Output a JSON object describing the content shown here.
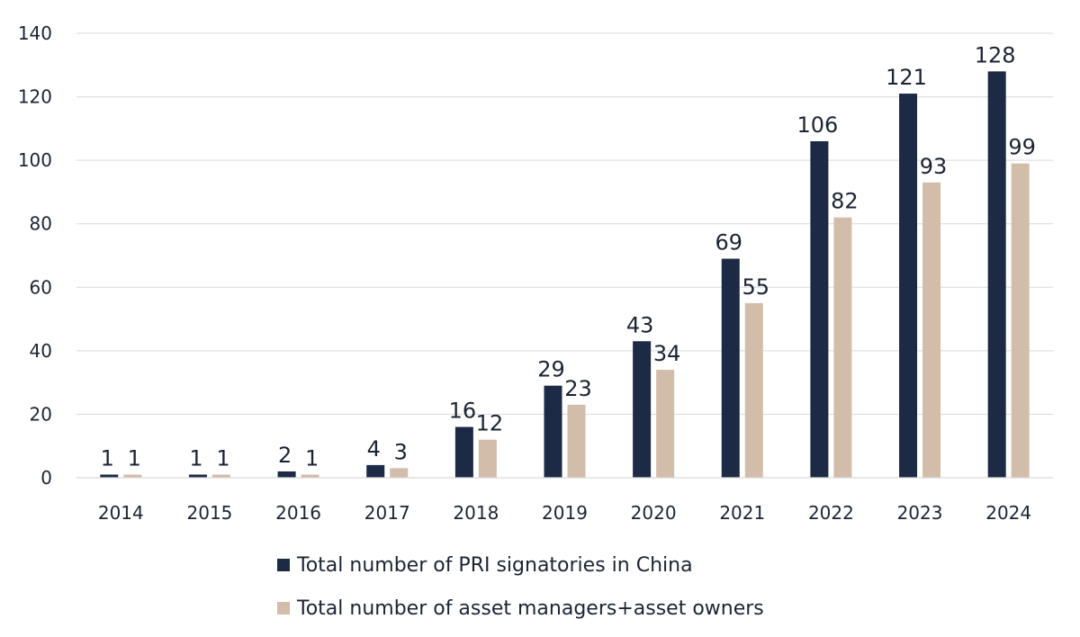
{
  "chart_data": {
    "type": "bar",
    "title": "",
    "xlabel": "",
    "ylabel": "",
    "ylim": [
      0,
      140
    ],
    "yticks": [
      0,
      20,
      40,
      60,
      80,
      100,
      120,
      140
    ],
    "grid": true,
    "legend_position": "bottom-center",
    "categories": [
      "2014",
      "2015",
      "2016",
      "2017",
      "2018",
      "2019",
      "2020",
      "2021",
      "2022",
      "2023",
      "2024"
    ],
    "series": [
      {
        "name": "Total number of PRI signatories in China",
        "color": "#1c2a45",
        "values": [
          1,
          1,
          2,
          4,
          16,
          29,
          43,
          69,
          106,
          121,
          128
        ]
      },
      {
        "name": "Total number of asset managers+asset owners",
        "color": "#d2bcaa",
        "values": [
          1,
          1,
          1,
          3,
          12,
          23,
          34,
          55,
          82,
          93,
          99
        ]
      }
    ]
  }
}
